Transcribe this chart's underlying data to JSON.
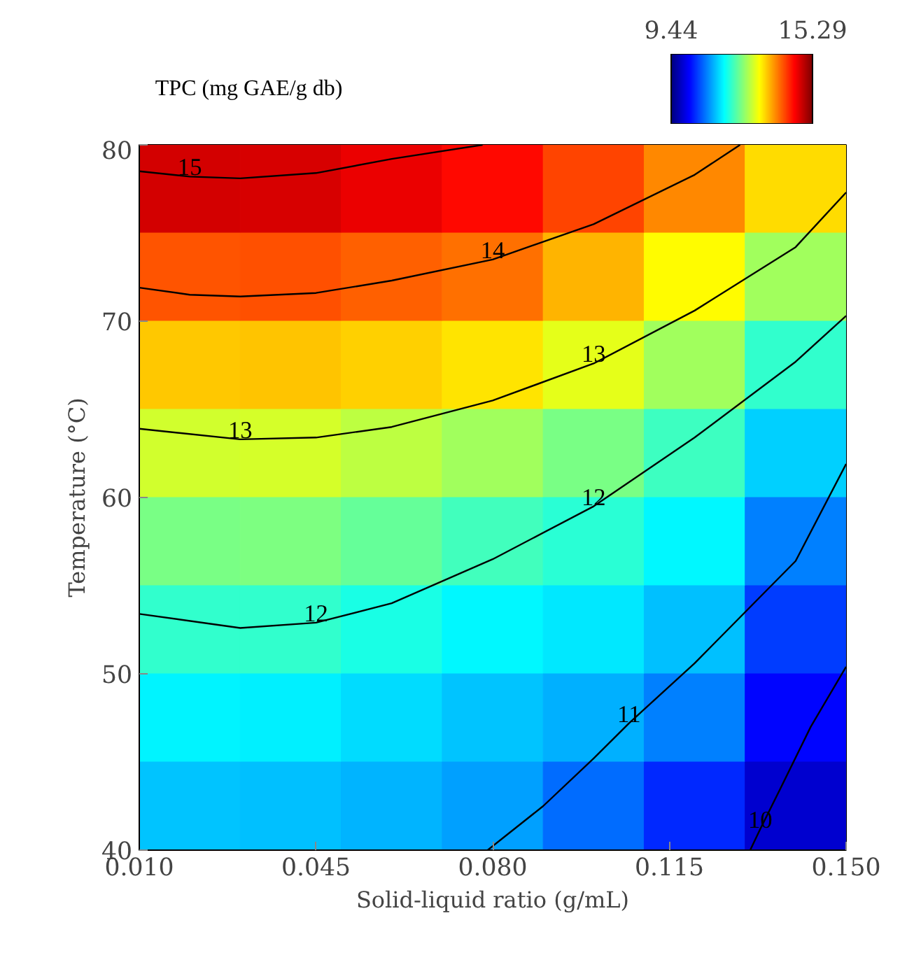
{
  "chart_data": {
    "type": "heatmap",
    "xlabel": "Solid-liquid ratio (g/mL)",
    "ylabel": "Temperature (°C)",
    "clabel": "TPC (mg GAE/g db)",
    "x": [
      0.02,
      0.04,
      0.06,
      0.08,
      0.1,
      0.12,
      0.14
    ],
    "y": [
      77.5,
      72.5,
      67.5,
      62.5,
      57.5,
      52.5,
      47.5,
      42.5
    ],
    "cells": [
      [
        14.8,
        14.78,
        14.66,
        14.5,
        14.16,
        13.78,
        13.28
      ],
      [
        14.07,
        14.08,
        14.0,
        13.9,
        13.53,
        13.11,
        12.56
      ],
      [
        13.41,
        13.43,
        13.35,
        13.25,
        12.94,
        12.55,
        11.93
      ],
      [
        12.83,
        12.85,
        12.72,
        12.55,
        12.32,
        11.99,
        11.37
      ],
      [
        12.34,
        12.36,
        12.21,
        12.0,
        11.87,
        11.61,
        10.91
      ],
      [
        11.91,
        11.93,
        11.79,
        11.6,
        11.51,
        11.27,
        10.53
      ],
      [
        11.57,
        11.55,
        11.44,
        11.3,
        11.19,
        10.92,
        10.21
      ],
      [
        11.3,
        11.28,
        11.2,
        11.1,
        10.79,
        10.42,
        9.9
      ]
    ],
    "clim": [
      9.44,
      15.29
    ],
    "cticks": [
      9.44,
      15.29
    ],
    "xlim": [
      0.01,
      0.15
    ],
    "xticks": [
      {
        "value": 0.01,
        "label": "0.010"
      },
      {
        "value": 0.045,
        "label": "0.045"
      },
      {
        "value": 0.08,
        "label": "0.080"
      },
      {
        "value": 0.115,
        "label": "0.115"
      },
      {
        "value": 0.15,
        "label": "0.150"
      }
    ],
    "ylim": [
      40,
      80
    ],
    "yticks": [
      40,
      50,
      60,
      70,
      80
    ],
    "series": [
      {
        "type": "line",
        "color": "#000000",
        "x": [
          0.01,
          0.02,
          0.03,
          0.045,
          0.06,
          0.078
        ],
        "values": [
          78.5,
          78.2,
          78.1,
          78.4,
          79.2,
          80
        ]
      },
      {
        "type": "line",
        "color": "#000000",
        "x": [
          0.01,
          0.02,
          0.03,
          0.045,
          0.06,
          0.08,
          0.1,
          0.12,
          0.129
        ],
        "values": [
          71.9,
          71.5,
          71.4,
          71.6,
          72.3,
          73.5,
          75.5,
          78.3,
          80
        ]
      },
      {
        "type": "line",
        "color": "#000000",
        "x": [
          0.01,
          0.03,
          0.045,
          0.06,
          0.08,
          0.1,
          0.12,
          0.14,
          0.15
        ],
        "values": [
          63.9,
          63.3,
          63.4,
          64.0,
          65.5,
          67.6,
          70.6,
          74.2,
          77.3
        ]
      },
      {
        "type": "line",
        "color": "#000000",
        "x": [
          0.01,
          0.03,
          0.045,
          0.06,
          0.08,
          0.1,
          0.12,
          0.14,
          0.15
        ],
        "values": [
          53.4,
          52.6,
          52.9,
          54.0,
          56.5,
          59.5,
          63.4,
          67.7,
          70.3
        ]
      },
      {
        "type": "line",
        "color": "#000000",
        "x": [
          0.079,
          0.09,
          0.1,
          0.107,
          0.12,
          0.14,
          0.15
        ],
        "values": [
          40,
          42.5,
          45.2,
          47.2,
          50.6,
          56.4,
          61.9
        ]
      },
      {
        "type": "line",
        "color": "#000000",
        "x": [
          0.131,
          0.133,
          0.137,
          0.143,
          0.15
        ],
        "values": [
          40,
          41.2,
          43.5,
          47,
          50.4
        ]
      }
    ],
    "annotations": [
      {
        "text": "15",
        "x": 0.02,
        "y": 78.2
      },
      {
        "text": "14",
        "x": 0.08,
        "y": 73.5
      },
      {
        "text": "13",
        "x": 0.1,
        "y": 67.6
      },
      {
        "text": "13",
        "x": 0.03,
        "y": 63.3
      },
      {
        "text": "12",
        "x": 0.1,
        "y": 59.5
      },
      {
        "text": "12",
        "x": 0.045,
        "y": 52.9
      },
      {
        "text": "11",
        "x": 0.107,
        "y": 47.2
      },
      {
        "text": "10",
        "x": 0.133,
        "y": 41.2
      }
    ]
  }
}
